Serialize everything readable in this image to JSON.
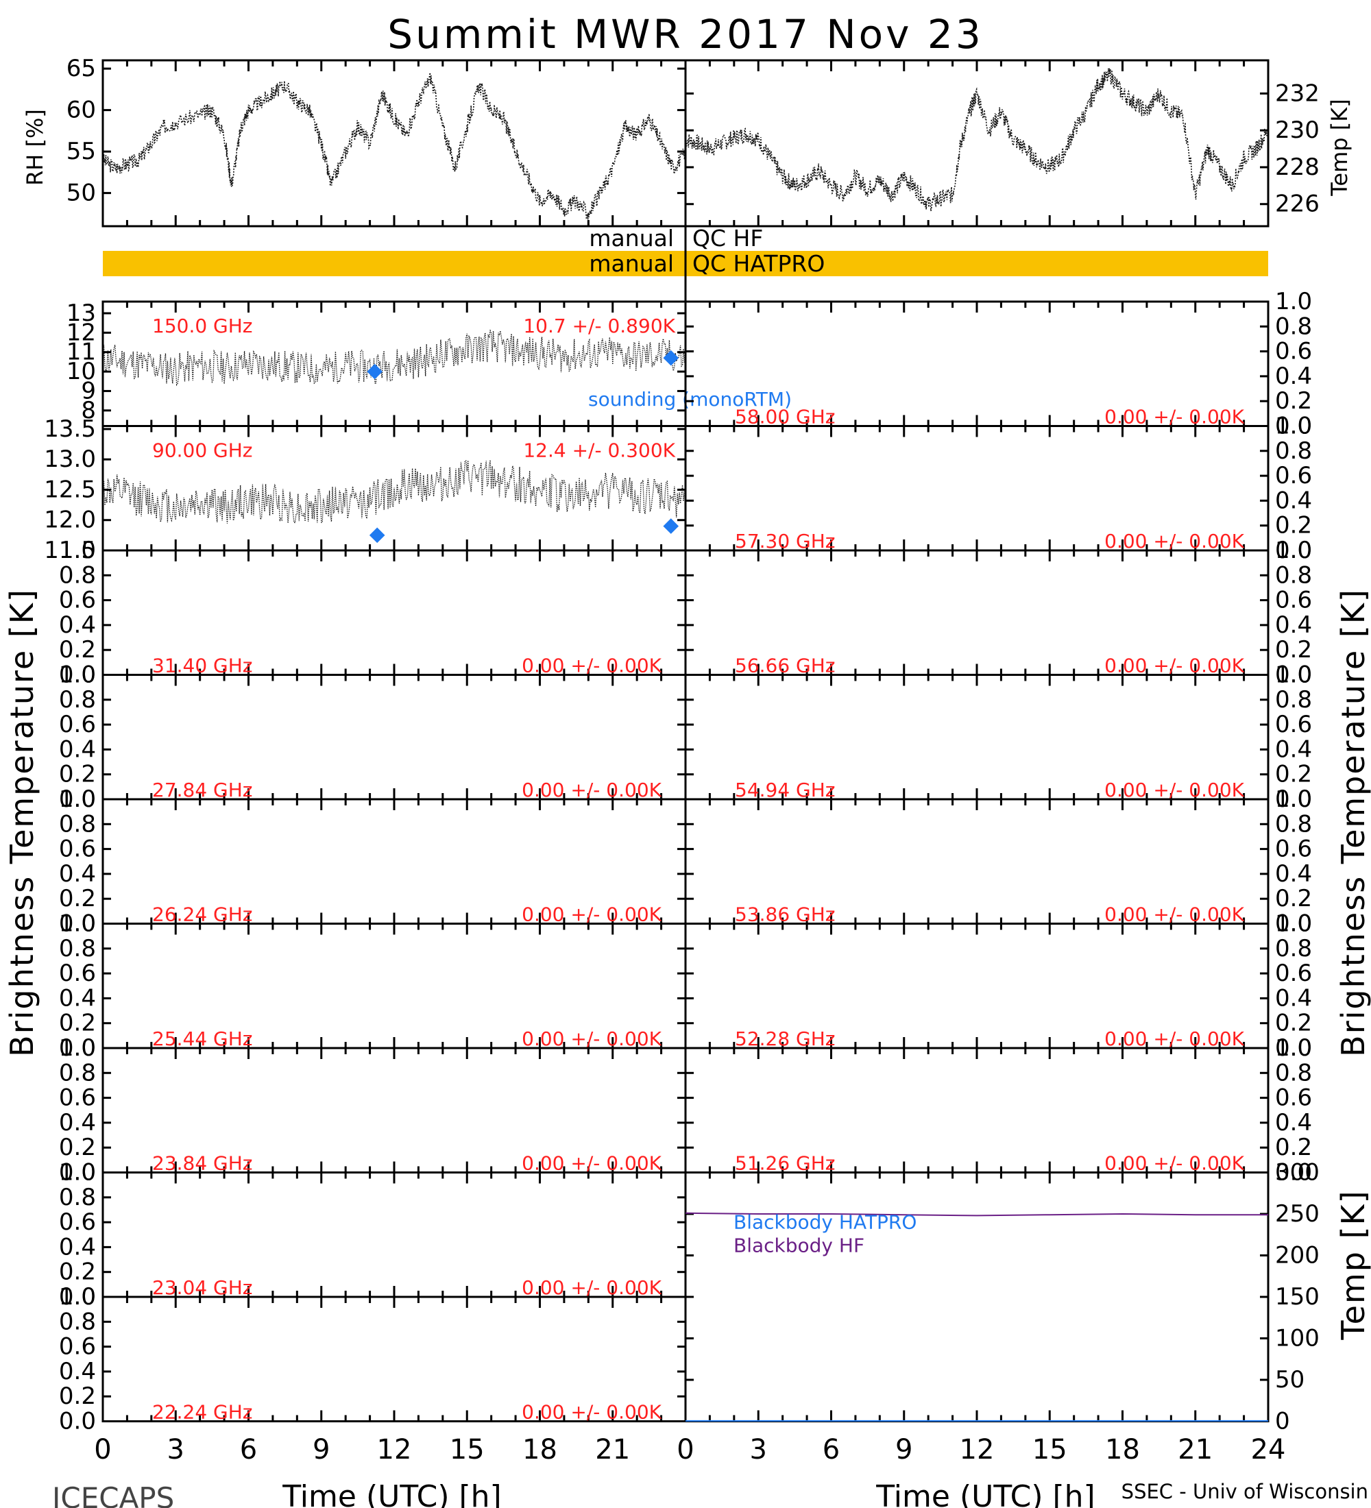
{
  "title": "Summit MWR 2017 Nov 23",
  "credit_left": "ICECAPS",
  "credit_right": "SSEC - Univ of Wisconsin",
  "colors": {
    "qc_band": "#F9C100",
    "red_text": "#FF2020",
    "sounding": "#1F7AF0",
    "bb_hatpro": "#1F7AF0",
    "bb_hf": "#6A1F86",
    "trace": "#111111"
  },
  "chart_data": [
    {
      "type": "line",
      "panel": "rh",
      "ylabel": "RH [%]",
      "yticks": [
        "50",
        "55",
        "60",
        "65"
      ],
      "ylim": [
        46,
        66
      ],
      "xlim": [
        0,
        24
      ],
      "series": [
        {
          "values": [
            [
              0.0,
              54
            ],
            [
              0.5,
              53
            ],
            [
              1,
              53.5
            ],
            [
              1.5,
              54
            ],
            [
              2,
              56
            ],
            [
              2.5,
              58
            ],
            [
              3,
              58.5
            ],
            [
              4,
              59.5
            ],
            [
              4.5,
              60
            ],
            [
              5,
              57
            ],
            [
              5.3,
              51
            ],
            [
              5.7,
              58
            ],
            [
              6,
              60
            ],
            [
              6.5,
              61
            ],
            [
              7,
              62
            ],
            [
              7.5,
              63
            ],
            [
              8,
              61
            ],
            [
              8.5,
              60
            ],
            [
              9,
              56
            ],
            [
              9.4,
              51
            ],
            [
              10,
              55
            ],
            [
              10.5,
              58
            ],
            [
              11,
              56
            ],
            [
              11.5,
              62
            ],
            [
              12,
              59
            ],
            [
              12.5,
              57
            ],
            [
              13,
              61
            ],
            [
              13.5,
              64
            ],
            [
              14,
              58
            ],
            [
              14.5,
              53
            ],
            [
              15,
              58
            ],
            [
              15.5,
              63
            ],
            [
              16,
              60
            ],
            [
              16.5,
              59
            ],
            [
              17,
              55
            ],
            [
              17.5,
              52
            ],
            [
              18,
              49
            ],
            [
              18.5,
              50
            ],
            [
              19,
              48
            ],
            [
              19.5,
              49
            ],
            [
              20,
              47.5
            ],
            [
              20.5,
              50
            ],
            [
              21,
              53
            ],
            [
              21.5,
              58
            ],
            [
              22,
              57
            ],
            [
              22.5,
              59
            ],
            [
              23,
              56
            ],
            [
              23.5,
              53
            ],
            [
              24,
              55
            ]
          ]
        }
      ]
    },
    {
      "type": "line",
      "panel": "temp",
      "ylabel": "Temp [K]",
      "yticks": [
        "226",
        "228",
        "230",
        "232"
      ],
      "ylim": [
        224.8,
        233.8
      ],
      "xlim": [
        0,
        24
      ],
      "series": [
        {
          "values": [
            [
              0,
              229.5
            ],
            [
              0.5,
              229.3
            ],
            [
              1,
              229
            ],
            [
              1.5,
              229.3
            ],
            [
              2,
              229.6
            ],
            [
              2.5,
              229.8
            ],
            [
              3,
              229.5
            ],
            [
              3.5,
              228.5
            ],
            [
              4,
              227.5
            ],
            [
              4.5,
              227
            ],
            [
              5,
              227.3
            ],
            [
              5.5,
              227.8
            ],
            [
              6,
              227
            ],
            [
              6.5,
              226.5
            ],
            [
              7,
              227.5
            ],
            [
              7.5,
              226.8
            ],
            [
              8,
              227.3
            ],
            [
              8.5,
              226.5
            ],
            [
              9,
              227.5
            ],
            [
              9.5,
              226.8
            ],
            [
              10,
              226
            ],
            [
              10.5,
              226.3
            ],
            [
              11,
              226.5
            ],
            [
              11.3,
              229
            ],
            [
              11.7,
              231
            ],
            [
              12,
              232
            ],
            [
              12.5,
              230
            ],
            [
              13,
              231
            ],
            [
              13.5,
              229.5
            ],
            [
              14,
              229
            ],
            [
              14.5,
              228.3
            ],
            [
              15,
              228
            ],
            [
              15.5,
              228.5
            ],
            [
              16,
              230
            ],
            [
              16.5,
              231
            ],
            [
              17,
              232.5
            ],
            [
              17.5,
              233
            ],
            [
              18,
              232
            ],
            [
              18.5,
              231.5
            ],
            [
              19,
              231
            ],
            [
              19.5,
              232
            ],
            [
              20,
              231
            ],
            [
              20.5,
              230.8
            ],
            [
              21,
              226.5
            ],
            [
              21.5,
              229
            ],
            [
              22,
              228
            ],
            [
              22.5,
              227
            ],
            [
              23,
              228.5
            ],
            [
              23.5,
              229
            ],
            [
              24,
              230
            ]
          ]
        }
      ]
    },
    {
      "type": "line",
      "panel": "tb-150",
      "ylabel": "Brightness Temperature [K]",
      "freq": "150.0 GHz",
      "stat": "10.7 +/- 0.890K",
      "yticks": [
        "8",
        "9",
        "10",
        "11",
        "12",
        "13"
      ],
      "ylim": [
        7.2,
        13.6
      ],
      "xlim": [
        0,
        24
      ],
      "series": [
        {
          "values": [
            [
              0,
              10.7
            ],
            [
              1,
              10.5
            ],
            [
              2,
              10.3
            ],
            [
              3,
              10.1
            ],
            [
              4,
              10.3
            ],
            [
              5,
              10.2
            ],
            [
              6,
              10.4
            ],
            [
              7,
              10.3
            ],
            [
              8,
              10.2
            ],
            [
              9,
              10.1
            ],
            [
              10,
              10.3
            ],
            [
              11,
              10.2
            ],
            [
              12,
              10.4
            ],
            [
              13,
              10.5
            ],
            [
              14,
              10.9
            ],
            [
              15,
              11.2
            ],
            [
              16,
              11.4
            ],
            [
              17,
              11.1
            ],
            [
              18,
              11.0
            ],
            [
              19,
              10.8
            ],
            [
              20,
              10.9
            ],
            [
              21,
              11.0
            ],
            [
              22,
              10.8
            ],
            [
              23,
              10.9
            ],
            [
              24,
              10.7
            ]
          ]
        }
      ],
      "sounding": [
        [
          11.2,
          10.0
        ],
        [
          23.4,
          10.7
        ]
      ]
    },
    {
      "type": "line",
      "panel": "tb-90",
      "freq": "90.00 GHz",
      "stat": "12.4 +/- 0.300K",
      "yticks": [
        "11.5",
        "12.0",
        "12.5",
        "13.0",
        "13.5"
      ],
      "ylim": [
        11.5,
        13.55
      ],
      "xlim": [
        0,
        24
      ],
      "series": [
        {
          "values": [
            [
              0,
              12.5
            ],
            [
              1,
              12.4
            ],
            [
              2,
              12.3
            ],
            [
              3,
              12.2
            ],
            [
              4,
              12.3
            ],
            [
              5,
              12.2
            ],
            [
              6,
              12.3
            ],
            [
              7,
              12.3
            ],
            [
              8,
              12.2
            ],
            [
              9,
              12.2
            ],
            [
              10,
              12.3
            ],
            [
              11,
              12.3
            ],
            [
              12,
              12.5
            ],
            [
              13,
              12.6
            ],
            [
              14,
              12.6
            ],
            [
              15,
              12.7
            ],
            [
              16,
              12.7
            ],
            [
              17,
              12.6
            ],
            [
              18,
              12.5
            ],
            [
              19,
              12.4
            ],
            [
              20,
              12.4
            ],
            [
              21,
              12.5
            ],
            [
              22,
              12.4
            ],
            [
              23,
              12.4
            ],
            [
              24,
              12.3
            ]
          ]
        }
      ],
      "sounding": [
        [
          11.3,
          11.75
        ],
        [
          23.4,
          11.9
        ]
      ]
    },
    {
      "type": "line",
      "panel": "blackbody",
      "ylabel": "Temp [K]",
      "yticks": [
        "0",
        "50",
        "100",
        "150",
        "200",
        "250",
        "300"
      ],
      "ylim": [
        0,
        300
      ],
      "xlim": [
        0,
        24
      ],
      "xlabel": "Time (UTC) [h]",
      "xticks": [
        "0",
        "3",
        "6",
        "9",
        "12",
        "15",
        "18",
        "21",
        "24"
      ],
      "series": [
        {
          "name": "Blackbody HATPRO",
          "values": [
            [
              0,
              0.5
            ],
            [
              24,
              0.5
            ]
          ]
        },
        {
          "name": "Blackbody HF",
          "values": [
            [
              0,
              251
            ],
            [
              3,
              250
            ],
            [
              6,
              250
            ],
            [
              9,
              249
            ],
            [
              12,
              248
            ],
            [
              15,
              249
            ],
            [
              18,
              250
            ],
            [
              21,
              249
            ],
            [
              24,
              249
            ]
          ]
        }
      ]
    }
  ],
  "qc": {
    "hf_prefix": "manual",
    "hf_label": "QC HF",
    "hatpro_prefix": "manual",
    "hatpro_label": "QC HATPRO"
  },
  "sounding_label": "sounding (monoRTM)",
  "empty_tick_labels": [
    "0.0",
    "0.2",
    "0.4",
    "0.6",
    "0.8",
    "1.0"
  ],
  "empty_panels_left": [
    {
      "freq": "31.40 GHz",
      "stat": "0.00 +/- 0.00K"
    },
    {
      "freq": "27.84 GHz",
      "stat": "0.00 +/- 0.00K"
    },
    {
      "freq": "26.24 GHz",
      "stat": "0.00 +/- 0.00K"
    },
    {
      "freq": "25.44 GHz",
      "stat": "0.00 +/- 0.00K"
    },
    {
      "freq": "23.84 GHz",
      "stat": "0.00 +/- 0.00K"
    },
    {
      "freq": "23.04 GHz",
      "stat": "0.00 +/- 0.00K"
    },
    {
      "freq": "22.24 GHz",
      "stat": "0.00 +/- 0.00K"
    }
  ],
  "empty_panels_right": [
    {
      "freq": "58.00 GHz",
      "stat": "0.00 +/- 0.00K"
    },
    {
      "freq": "57.30 GHz",
      "stat": "0.00 +/- 0.00K"
    },
    {
      "freq": "56.66 GHz",
      "stat": "0.00 +/- 0.00K"
    },
    {
      "freq": "54.94 GHz",
      "stat": "0.00 +/- 0.00K"
    },
    {
      "freq": "53.86 GHz",
      "stat": "0.00 +/- 0.00K"
    },
    {
      "freq": "52.28 GHz",
      "stat": "0.00 +/- 0.00K"
    },
    {
      "freq": "51.26 GHz",
      "stat": "0.00 +/- 0.00K"
    }
  ],
  "x_axis": {
    "label": "Time (UTC) [h]",
    "ticks": [
      "0",
      "3",
      "6",
      "9",
      "12",
      "15",
      "18",
      "21",
      "24"
    ]
  }
}
